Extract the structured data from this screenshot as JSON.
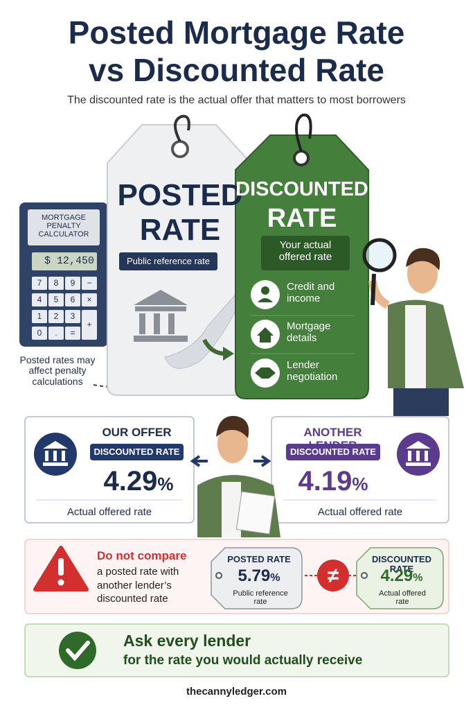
{
  "header": {
    "title_lines": [
      "Posted Mortgage Rate",
      "vs Discounted Rate"
    ],
    "subtitle": "The discounted rate is the actual offer that matters to most borrowers"
  },
  "calculator": {
    "label": "MORTGAGE PENALTY CALCULATOR",
    "display": "$ 12,450",
    "keys": [
      "7",
      "8",
      "9",
      "−",
      "4",
      "5",
      "6",
      "×",
      "1",
      "2",
      "3",
      "+",
      "0",
      ".",
      "="
    ],
    "note": "Posted rates may affect penalty calculations"
  },
  "posted_tag": {
    "title_lines": [
      "POSTED",
      "RATE"
    ],
    "label": "Public reference rate"
  },
  "discounted_tag": {
    "title_lines": [
      "DISCOUNTED",
      "RATE"
    ],
    "label": "Your actual offered rate",
    "factors": [
      "Credit and income",
      "Mortgage details",
      "Lender negotiation"
    ]
  },
  "offers": [
    {
      "heading": "OUR OFFER",
      "badge": "DISCOUNTED RATE",
      "rate": "4.29",
      "unit": "%",
      "caption": "Actual offered rate"
    },
    {
      "heading": "ANOTHER LENDER",
      "badge": "DISCOUNTED RATE",
      "rate": "4.19",
      "unit": "%",
      "caption": "Actual offered rate"
    }
  ],
  "warning": {
    "heading": "Do not compare",
    "text": "a posted rate with another lender’s discounted rate",
    "symbol": "≠",
    "posted": {
      "title": "POSTED RATE",
      "rate": "5.79",
      "unit": "%",
      "caption": "Public reference rate"
    },
    "discounted": {
      "title": "DISCOUNTED RATE",
      "rate": "4.29",
      "unit": "%",
      "caption": "Actual offered rate"
    }
  },
  "tip": {
    "lines": [
      "Ask every lender",
      "for the rate you would actually receive"
    ]
  },
  "footer": "thecannyledger.com"
}
